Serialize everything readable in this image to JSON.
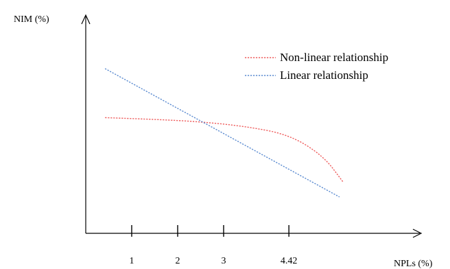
{
  "chart_data": {
    "type": "line",
    "title": "",
    "xlabel": "NPLs (%)",
    "ylabel": "NIM (%)",
    "x_ticks": [
      "1",
      "2",
      "3",
      "4.42"
    ],
    "x_tick_values": [
      1,
      2,
      3,
      4.42
    ],
    "grid": false,
    "legend": {
      "position": "top-right"
    },
    "series": [
      {
        "name": "Non-linear relationship",
        "color": "#ee5d5d",
        "style": "dotted",
        "points": [
          [
            0.42,
            0.618
          ],
          [
            1.42,
            0.606
          ],
          [
            2.42,
            0.588
          ],
          [
            3.42,
            0.553
          ],
          [
            4.42,
            0.487
          ],
          [
            5.17,
            0.32
          ],
          [
            5.6,
            0.116
          ]
        ]
      },
      {
        "name": "Linear relationship",
        "color": "#5b8bd0",
        "style": "dotted",
        "points": [
          [
            0.42,
            1.0
          ],
          [
            5.52,
            0.0
          ]
        ]
      }
    ]
  }
}
